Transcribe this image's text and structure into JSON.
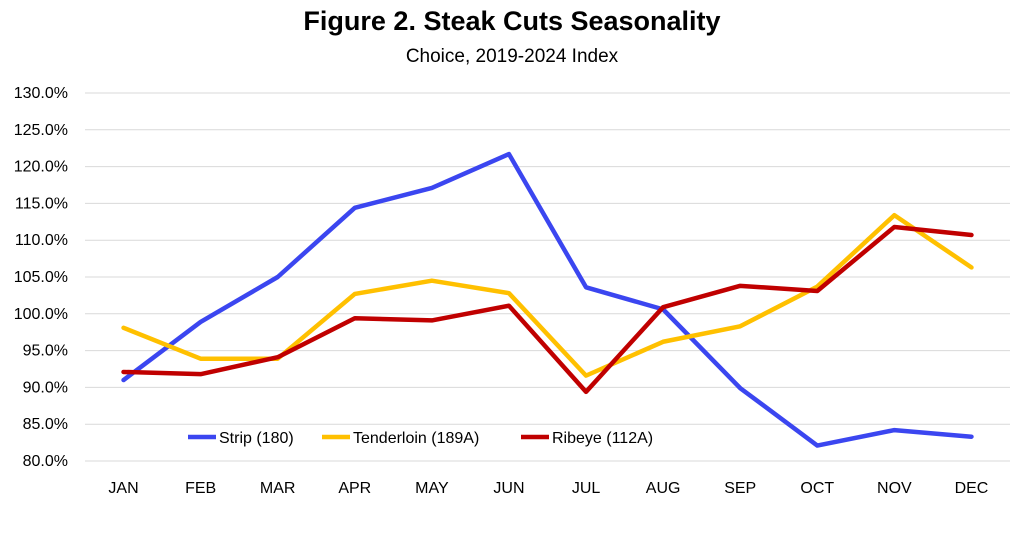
{
  "chart_data": {
    "type": "line",
    "title": "Figure 2. Steak Cuts Seasonality",
    "subtitle": "Choice, 2019-2024 Index",
    "xlabel": "",
    "ylabel": "",
    "categories": [
      "JAN",
      "FEB",
      "MAR",
      "APR",
      "MAY",
      "JUN",
      "JUL",
      "AUG",
      "SEP",
      "OCT",
      "NOV",
      "DEC"
    ],
    "ylim": [
      80,
      130
    ],
    "ytick_step": 5,
    "ytick_labels": [
      "80.0%",
      "85.0%",
      "90.0%",
      "95.0%",
      "100.0%",
      "105.0%",
      "110.0%",
      "115.0%",
      "120.0%",
      "125.0%",
      "130.0%"
    ],
    "grid": true,
    "legend_position": "bottom-left inside",
    "series": [
      {
        "name": "Strip (180)",
        "color": "#3B46F0",
        "values": [
          91.0,
          98.9,
          105.0,
          114.4,
          117.1,
          121.7,
          103.6,
          100.6,
          89.9,
          82.1,
          84.2,
          83.3
        ]
      },
      {
        "name": "Tenderloin (189A)",
        "color": "#FFC000",
        "values": [
          98.1,
          93.9,
          93.9,
          102.7,
          104.5,
          102.8,
          91.6,
          96.2,
          98.3,
          103.7,
          113.4,
          106.3
        ]
      },
      {
        "name": "Ribeye (112A)",
        "color": "#C00000",
        "values": [
          92.1,
          91.8,
          94.1,
          99.4,
          99.1,
          101.1,
          89.4,
          100.9,
          103.8,
          103.1,
          111.8,
          110.7
        ]
      }
    ]
  }
}
